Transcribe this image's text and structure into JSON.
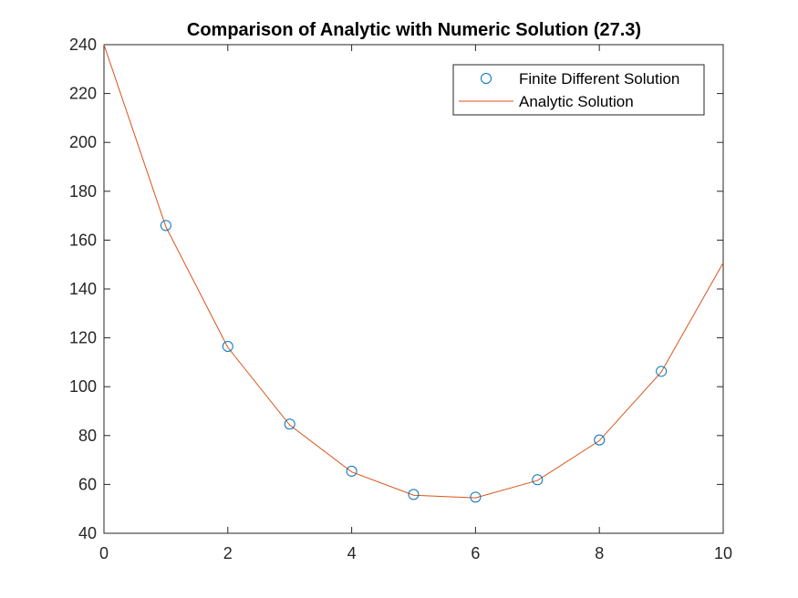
{
  "chart_data": {
    "type": "line",
    "title": "Comparison of Analytic with Numeric Solution (27.3)",
    "xlabel": "",
    "ylabel": "",
    "xlim": [
      0,
      10
    ],
    "ylim": [
      40,
      240
    ],
    "xticks": [
      "0",
      "2",
      "4",
      "6",
      "8",
      "10"
    ],
    "yticks": [
      "40",
      "60",
      "80",
      "100",
      "120",
      "140",
      "160",
      "180",
      "200",
      "220",
      "240"
    ],
    "grid": false,
    "legend_position": "top-right",
    "series": [
      {
        "name": "Finite Different Solution",
        "style": "markers",
        "marker": "circle",
        "color": "#0072BD",
        "x": [
          1,
          2,
          3,
          4,
          5,
          6,
          7,
          8,
          9
        ],
        "y": [
          166,
          116.5,
          84.7,
          65.4,
          55.9,
          54.8,
          61.9,
          78.2,
          106.3
        ]
      },
      {
        "name": "Analytic Solution",
        "style": "line",
        "color": "#D95319",
        "x": [
          0,
          1,
          2,
          3,
          4,
          5,
          6,
          7,
          8,
          9,
          10
        ],
        "y": [
          240,
          165.4,
          116.1,
          84.3,
          65.1,
          55.6,
          54.5,
          61.6,
          77.9,
          106,
          150.7
        ]
      }
    ]
  }
}
